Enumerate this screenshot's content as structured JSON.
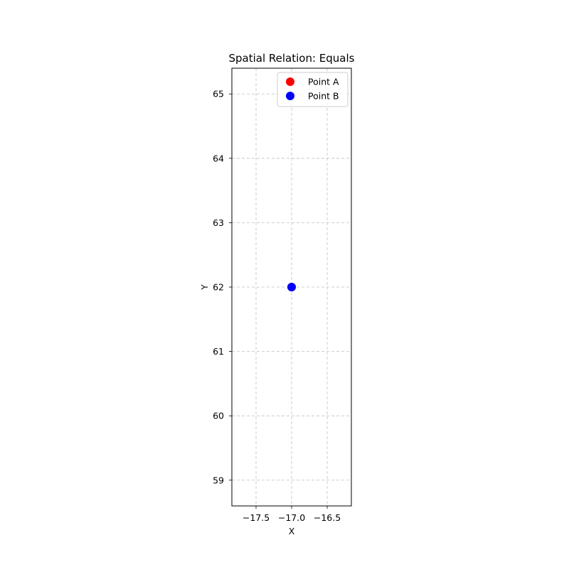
{
  "chart_data": {
    "type": "scatter",
    "title": "Spatial Relation: Equals",
    "xlabel": "X",
    "ylabel": "Y",
    "xlim": [
      -17.84,
      -16.16
    ],
    "ylim": [
      58.6,
      65.4
    ],
    "xticks": [
      -17.5,
      -17.0,
      -16.5
    ],
    "xtick_labels": [
      "−17.5",
      "−17.0",
      "−16.5"
    ],
    "yticks": [
      59,
      60,
      61,
      62,
      63,
      64,
      65
    ],
    "ytick_labels": [
      "59",
      "60",
      "61",
      "62",
      "63",
      "64",
      "65"
    ],
    "grid": true,
    "legend_position": "top-right",
    "series": [
      {
        "name": "Point A",
        "color": "#ff0000",
        "x": [
          -17.0
        ],
        "y": [
          62.0
        ]
      },
      {
        "name": "Point B",
        "color": "#0000ff",
        "x": [
          -17.0
        ],
        "y": [
          62.0
        ]
      }
    ]
  }
}
